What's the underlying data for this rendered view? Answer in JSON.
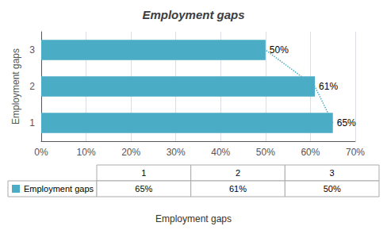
{
  "chart_data": {
    "type": "bar",
    "orientation": "horizontal",
    "title": "Employment gaps",
    "xlabel": "Employment gaps",
    "ylabel": "Employment gaps",
    "categories": [
      1,
      2,
      3
    ],
    "values": [
      0.65,
      0.61,
      0.5
    ],
    "value_labels": [
      "65%",
      "61%",
      "50%"
    ],
    "data_labels": true,
    "color": "#4BACC6",
    "line_style": "dotted",
    "xlim": [
      0,
      0.7
    ],
    "xticks": [
      {
        "value": 0.0,
        "label": "0%"
      },
      {
        "value": 0.1,
        "label": "10%"
      },
      {
        "value": 0.2,
        "label": "20%"
      },
      {
        "value": 0.3,
        "label": "30%"
      },
      {
        "value": 0.4,
        "label": "40%"
      },
      {
        "value": 0.5,
        "label": "50%"
      },
      {
        "value": 0.6,
        "label": "60%"
      },
      {
        "value": 0.7,
        "label": "70%"
      }
    ],
    "grid": true,
    "table": {
      "row_label": "Employment gaps",
      "columns": [
        "1",
        "2",
        "3"
      ],
      "values": [
        "65%",
        "61%",
        "50%"
      ]
    }
  }
}
